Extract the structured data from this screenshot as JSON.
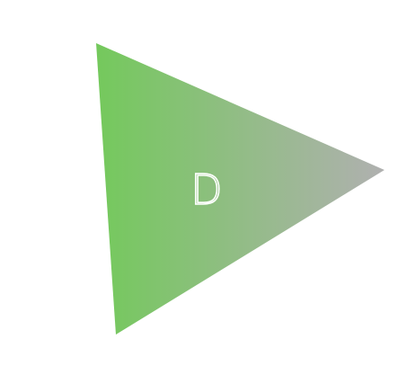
{
  "shape": {
    "kind": "triangle",
    "gradient": {
      "start_color": "#74c95c",
      "end_color": "#b0b0b0"
    }
  },
  "label": {
    "text": "D",
    "color": "#ffffff"
  }
}
